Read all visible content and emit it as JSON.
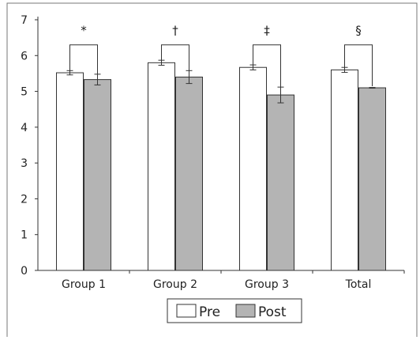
{
  "chart_data": {
    "type": "bar",
    "title": "",
    "xlabel": "",
    "ylabel": "",
    "ylim": [
      0,
      7
    ],
    "yticks": [
      0,
      1,
      2,
      3,
      4,
      5,
      6,
      7
    ],
    "categories": [
      "Group 1",
      "Group 2",
      "Group 3",
      "Total"
    ],
    "series": [
      {
        "name": "Pre",
        "values": [
          5.52,
          5.8,
          5.67,
          5.6
        ],
        "error": [
          0.06,
          0.07,
          0.07,
          0.07
        ],
        "fill": "#ffffff",
        "stroke": "#333333"
      },
      {
        "name": "Post",
        "values": [
          5.33,
          5.4,
          4.9,
          5.1
        ],
        "error": [
          0.15,
          0.18,
          0.22,
          0.01
        ],
        "fill": "#b4b4b4",
        "stroke": "#333333"
      }
    ],
    "annotations": [
      "*",
      "†",
      "‡",
      "§"
    ],
    "legend": {
      "position": "bottom",
      "entries": [
        "Pre",
        "Post"
      ]
    },
    "grid": false
  }
}
